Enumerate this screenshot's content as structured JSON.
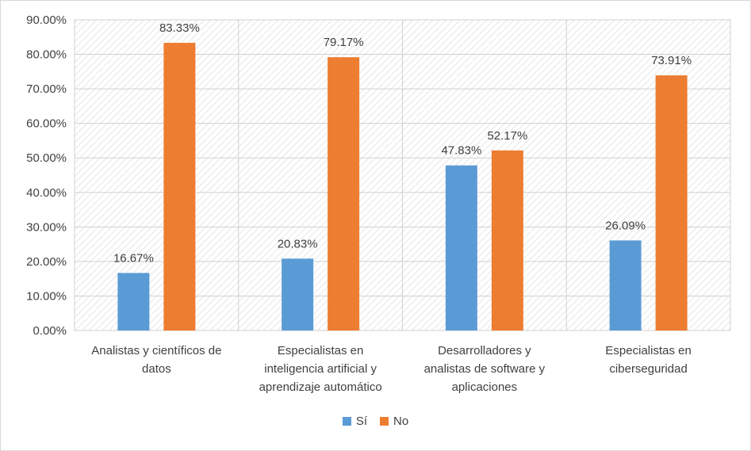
{
  "chart_data": {
    "type": "bar",
    "title": "",
    "xlabel": "",
    "ylabel": "",
    "ylim": [
      0,
      90
    ],
    "y_ticks": [
      "0.00%",
      "10.00%",
      "20.00%",
      "30.00%",
      "40.00%",
      "50.00%",
      "60.00%",
      "70.00%",
      "80.00%",
      "90.00%"
    ],
    "categories": [
      [
        "Analistas y científicos de",
        "datos"
      ],
      [
        "Especialistas en",
        "inteligencia artificial y",
        "aprendizaje automático"
      ],
      [
        "Desarrolladores y",
        "analistas de software y",
        "aplicaciones"
      ],
      [
        "Especialistas en",
        "ciberseguridad"
      ]
    ],
    "series": [
      {
        "name": "Sí",
        "color": "#5b9bd5",
        "values": [
          16.67,
          20.83,
          47.83,
          26.09
        ],
        "labels": [
          "16.67%",
          "20.83%",
          "47.83%",
          "26.09%"
        ]
      },
      {
        "name": "No",
        "color": "#ed7d31",
        "values": [
          83.33,
          79.17,
          52.17,
          73.91
        ],
        "labels": [
          "83.33%",
          "79.17%",
          "52.17%",
          "73.91%"
        ]
      }
    ],
    "grid": true,
    "legend_position": "bottom"
  }
}
